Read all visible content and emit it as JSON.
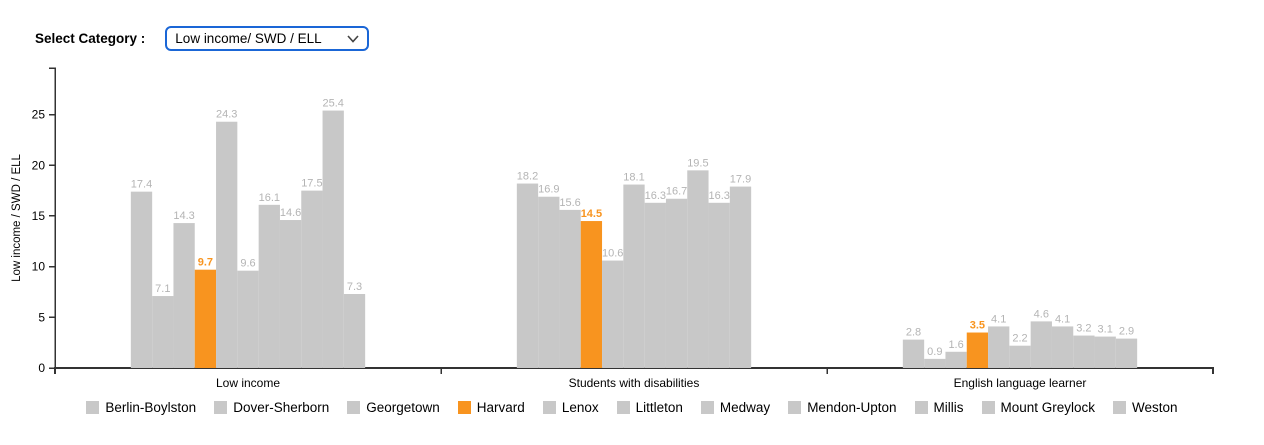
{
  "header": {
    "select_label": "Select Category :",
    "select_value": "Low income/ SWD / ELL"
  },
  "chart_data": {
    "type": "bar",
    "title": "",
    "xlabel": "",
    "ylabel": "Low income / SWD / ELL",
    "ylim": [
      0,
      29.6
    ],
    "yticks": [
      0,
      5,
      10,
      15,
      20,
      25
    ],
    "grid": false,
    "legend_position": "bottom",
    "value_labels": true,
    "categories": [
      "Low income",
      "Students with disabilities",
      "English language learner"
    ],
    "series": [
      {
        "name": "Berlin-Boylston",
        "values": [
          17.4,
          18.2,
          2.8
        ],
        "highlight": false
      },
      {
        "name": "Dover-Sherborn",
        "values": [
          7.1,
          16.9,
          0.9
        ],
        "highlight": false
      },
      {
        "name": "Georgetown",
        "values": [
          14.3,
          15.6,
          1.6
        ],
        "highlight": false
      },
      {
        "name": "Harvard",
        "values": [
          9.7,
          14.5,
          3.5
        ],
        "highlight": true
      },
      {
        "name": "Lenox",
        "values": [
          24.3,
          10.6,
          4.1
        ],
        "highlight": false
      },
      {
        "name": "Littleton",
        "values": [
          9.6,
          18.1,
          2.2
        ],
        "highlight": false
      },
      {
        "name": "Medway",
        "values": [
          16.1,
          16.3,
          4.6
        ],
        "highlight": false
      },
      {
        "name": "Mendon-Upton",
        "values": [
          14.6,
          16.7,
          4.1
        ],
        "highlight": false
      },
      {
        "name": "Millis",
        "values": [
          17.5,
          19.5,
          3.2
        ],
        "highlight": false
      },
      {
        "name": "Mount Greylock",
        "values": [
          25.4,
          16.3,
          3.1
        ],
        "highlight": false
      },
      {
        "name": "Weston",
        "values": [
          7.3,
          17.9,
          2.9
        ],
        "highlight": false
      }
    ],
    "colors": {
      "bar_default": "#c8c8c8",
      "bar_highlight": "#f8941f",
      "value_label": "#b4b4b4",
      "value_label_highlight": "#f8941f",
      "axis": "#333333",
      "text": "#000000",
      "select_border": "#1a66d6"
    }
  }
}
